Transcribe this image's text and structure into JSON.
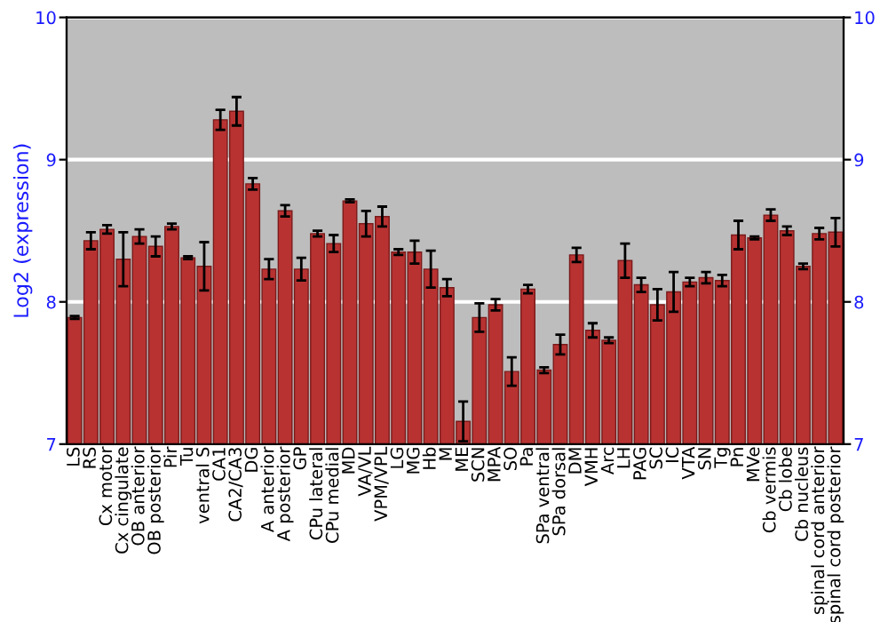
{
  "chart_data": {
    "type": "bar",
    "ylabel": "Log2 (expression)",
    "categories": [
      "LS",
      "RS",
      "Cx motor",
      "Cx cingulate",
      "OB anterior",
      "OB posterior",
      "Pir",
      "Tu",
      "ventral S",
      "CA1",
      "CA2/CA3",
      "DG",
      "A anterior",
      "A posterior",
      "GP",
      "CPu lateral",
      "CPu medial",
      "MD",
      "VA/VL",
      "VPM/VPL",
      "LG",
      "MG",
      "Hb",
      "M",
      "ME",
      "SCN",
      "MPA",
      "SO",
      "Pa",
      "SPa ventral",
      "SPa dorsal",
      "DM",
      "VMH",
      "Arc",
      "LH",
      "PAG",
      "SC",
      "IC",
      "VTA",
      "SN",
      "Tg",
      "Pn",
      "MVe",
      "Cb vermis",
      "Cb lobe",
      "Cb nucleus",
      "spinal cord anterior",
      "spinal cord posterior"
    ],
    "values": [
      7.89,
      8.43,
      8.51,
      8.3,
      8.46,
      8.39,
      8.53,
      8.31,
      8.25,
      9.28,
      9.34,
      8.83,
      8.23,
      8.64,
      8.23,
      8.48,
      8.41,
      8.71,
      8.55,
      8.6,
      8.35,
      8.35,
      8.23,
      8.1,
      7.16,
      7.89,
      7.98,
      7.51,
      8.09,
      7.52,
      7.7,
      8.33,
      7.8,
      7.73,
      8.29,
      8.12,
      7.98,
      8.07,
      8.14,
      8.17,
      8.15,
      8.47,
      8.45,
      8.61,
      8.5,
      8.25,
      8.48,
      8.49
    ],
    "errors": [
      0.01,
      0.06,
      0.03,
      0.19,
      0.05,
      0.07,
      0.02,
      0.01,
      0.17,
      0.07,
      0.1,
      0.04,
      0.07,
      0.04,
      0.08,
      0.02,
      0.06,
      0.01,
      0.09,
      0.07,
      0.02,
      0.08,
      0.13,
      0.06,
      0.14,
      0.1,
      0.04,
      0.1,
      0.03,
      0.02,
      0.07,
      0.05,
      0.05,
      0.02,
      0.12,
      0.05,
      0.11,
      0.14,
      0.03,
      0.04,
      0.04,
      0.1,
      0.01,
      0.04,
      0.03,
      0.02,
      0.04,
      0.1
    ],
    "color": "#b83232",
    "ylim": [
      7,
      10
    ],
    "yticks": [
      7,
      8,
      9,
      10
    ],
    "y2lim": [
      7,
      10
    ],
    "y2ticks": [
      7,
      8,
      9,
      10
    ],
    "grid": "y"
  }
}
